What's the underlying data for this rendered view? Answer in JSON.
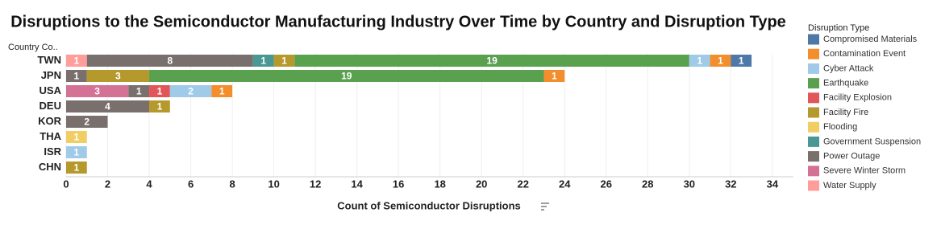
{
  "chart_data": {
    "type": "stacked-bar-horizontal",
    "title": "Disruptions to the Semiconductor Manufacturing Industry Over Time by Country and Disruption Type",
    "y_label": "Country Co..",
    "x_label": "Count of Semiconductor Disruptions",
    "legend_title": "Disruption Type",
    "categories": [
      "TWN",
      "JPN",
      "USA",
      "DEU",
      "KOR",
      "THA",
      "ISR",
      "CHN"
    ],
    "series": [
      {
        "name": "Compromised Materials",
        "color": "#4e79a7",
        "values": [
          1,
          null,
          null,
          null,
          null,
          null,
          null,
          null
        ]
      },
      {
        "name": "Contamination Event",
        "color": "#f28e2b",
        "values": [
          1,
          1,
          1,
          null,
          null,
          null,
          null,
          null
        ]
      },
      {
        "name": "Cyber Attack",
        "color": "#a0cbe8",
        "values": [
          1,
          null,
          2,
          null,
          null,
          null,
          1,
          null
        ]
      },
      {
        "name": "Earthquake",
        "color": "#59a14f",
        "values": [
          19,
          19,
          null,
          null,
          null,
          null,
          null,
          null
        ]
      },
      {
        "name": "Facility Explosion",
        "color": "#e15759",
        "values": [
          null,
          null,
          1,
          null,
          null,
          null,
          null,
          null
        ]
      },
      {
        "name": "Facility Fire",
        "color": "#b6992d",
        "values": [
          1,
          3,
          null,
          1,
          null,
          null,
          null,
          1
        ]
      },
      {
        "name": "Flooding",
        "color": "#f1ce63",
        "values": [
          null,
          null,
          null,
          null,
          null,
          1,
          null,
          null
        ]
      },
      {
        "name": "Government Suspension",
        "color": "#499894",
        "values": [
          1,
          null,
          null,
          null,
          null,
          null,
          null,
          null
        ]
      },
      {
        "name": "Power Outage",
        "color": "#79706e",
        "values": [
          8,
          1,
          1,
          4,
          2,
          null,
          null,
          null
        ]
      },
      {
        "name": "Severe Winter Storm",
        "color": "#d37295",
        "values": [
          null,
          null,
          3,
          null,
          null,
          null,
          null,
          null
        ]
      },
      {
        "name": "Water Supply",
        "color": "#ff9d9a",
        "values": [
          1,
          null,
          null,
          null,
          null,
          null,
          null,
          null
        ]
      }
    ],
    "xlim": [
      0,
      35
    ],
    "xticks": [
      0,
      2,
      4,
      6,
      8,
      10,
      12,
      14,
      16,
      18,
      20,
      22,
      24,
      26,
      28,
      30,
      32,
      34
    ],
    "grid": true
  }
}
